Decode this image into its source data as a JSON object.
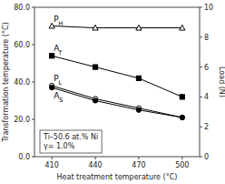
{
  "chart_data": {
    "type": "line",
    "x": [
      410,
      440,
      470,
      500
    ],
    "xlabel": "Heat treatment temperature (°C)",
    "ylabel": "Transformation temperature (°C)",
    "y2label": "Load (N)",
    "xlim": [
      398,
      512
    ],
    "ylim": [
      0,
      80
    ],
    "y2lim": [
      0,
      10
    ],
    "xticks": [
      410,
      440,
      470,
      500
    ],
    "yticks": [
      {
        "value": 0.0,
        "label": "0.0"
      },
      {
        "value": 20.0,
        "label": "20.0"
      },
      {
        "value": 40.0,
        "label": "40.0"
      },
      {
        "value": 60.0,
        "label": "60.0"
      },
      {
        "value": 80.0,
        "label": "80.0"
      }
    ],
    "y2ticks": [
      0,
      2,
      4,
      6,
      8,
      10
    ],
    "series": [
      {
        "name": "PH",
        "color": "#000000",
        "marker": "triangle-open",
        "values": [
          70,
          69,
          69,
          69
        ]
      },
      {
        "name": "Af",
        "color": "#000000",
        "marker": "square",
        "values": [
          54,
          48,
          42,
          32
        ]
      },
      {
        "name": "PL",
        "color": "#000000",
        "marker": "circle-open",
        "values": [
          38,
          31,
          26,
          21
        ]
      },
      {
        "name": "AS",
        "color": "#000000",
        "marker": "circle",
        "values": [
          37,
          30,
          25,
          21
        ]
      }
    ],
    "annotations": [
      "Ti–50.6 at.% Ni",
      "γ= 1.0%"
    ]
  }
}
